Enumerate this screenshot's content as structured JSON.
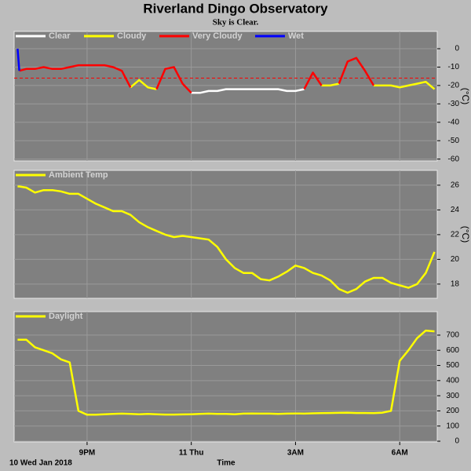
{
  "chart_data": [
    {
      "type": "line",
      "title": "Riverland Dingo Observatory",
      "subtitle": "Sky is Clear.",
      "y_label": "(°C)",
      "x": [
        19.0,
        19.05,
        19.25,
        19.5,
        19.75,
        20.0,
        20.25,
        20.5,
        20.75,
        21.0,
        21.25,
        21.5,
        21.75,
        22.0,
        22.25,
        22.5,
        22.75,
        23.0,
        23.25,
        23.5,
        23.75,
        24.0,
        24.25,
        24.5,
        24.75,
        25.0,
        25.25,
        25.5,
        25.75,
        26.0,
        26.25,
        26.5,
        26.75,
        27.0,
        27.25,
        27.5,
        27.75,
        28.0,
        28.25,
        28.5,
        28.75,
        29.0,
        29.25,
        29.5,
        29.75,
        30.0,
        30.25,
        30.5,
        30.75,
        31.0
      ],
      "series": [
        {
          "name": "Clear",
          "color": "#ffffff",
          "values": [
            null,
            null,
            null,
            null,
            null,
            null,
            null,
            null,
            null,
            null,
            null,
            null,
            null,
            null,
            null,
            null,
            null,
            null,
            null,
            null,
            null,
            -24,
            -24,
            -23,
            -23,
            -22,
            -22,
            -22,
            -22,
            -22,
            -22,
            -22,
            -23,
            -23,
            -22,
            null,
            null,
            null,
            null,
            null,
            null,
            null,
            null,
            null,
            null,
            null,
            null,
            null,
            null,
            null
          ]
        },
        {
          "name": "Cloudy",
          "color": "#ffff00",
          "values": [
            null,
            null,
            null,
            null,
            null,
            null,
            null,
            null,
            null,
            null,
            null,
            null,
            null,
            null,
            -21,
            -17,
            -21,
            -22,
            null,
            null,
            null,
            null,
            null,
            null,
            null,
            null,
            null,
            null,
            null,
            null,
            null,
            null,
            null,
            null,
            null,
            null,
            -20,
            -20,
            -19,
            null,
            null,
            null,
            -20,
            -20,
            -20,
            -21,
            -20,
            -19,
            -18,
            -22
          ]
        },
        {
          "name": "Very Cloudy",
          "color": "#ff0000",
          "values": [
            null,
            -12,
            -11,
            -11,
            -10,
            -11,
            -11,
            -10,
            -9,
            -9,
            -9,
            -9,
            -10,
            -12,
            -21,
            null,
            null,
            -22,
            -11,
            -10,
            -19,
            -24,
            null,
            null,
            null,
            null,
            null,
            null,
            null,
            null,
            null,
            null,
            null,
            null,
            -22,
            -13,
            -20,
            null,
            -19,
            -7,
            -5,
            -12,
            -20,
            null,
            null,
            null,
            null,
            null,
            null,
            null
          ]
        },
        {
          "name": "Wet",
          "color": "#0000ff",
          "values": [
            0,
            -12,
            null,
            null,
            null,
            null,
            null,
            null,
            null,
            null,
            null,
            null,
            null,
            null,
            null,
            null,
            null,
            null,
            null,
            null,
            null,
            null,
            null,
            null,
            null,
            null,
            null,
            null,
            null,
            null,
            null,
            null,
            null,
            null,
            null,
            null,
            null,
            null,
            null,
            null,
            null,
            null,
            null,
            null,
            null,
            null,
            null,
            null,
            null,
            null
          ]
        }
      ],
      "threshold": -16,
      "xlim": [
        18.9,
        31.08
      ],
      "ylim": [
        -61,
        9.4
      ],
      "yticks": [
        0,
        -10,
        -20,
        -30,
        -40,
        -50,
        -60
      ],
      "grid": true
    },
    {
      "type": "line",
      "y_label": "(°C)",
      "x": [
        19.0,
        19.05,
        19.25,
        19.5,
        19.75,
        20.0,
        20.25,
        20.5,
        20.75,
        21.0,
        21.25,
        21.5,
        21.75,
        22.0,
        22.25,
        22.5,
        22.75,
        23.0,
        23.25,
        23.5,
        23.75,
        24.0,
        24.25,
        24.5,
        24.75,
        25.0,
        25.25,
        25.5,
        25.75,
        26.0,
        26.25,
        26.5,
        26.75,
        27.0,
        27.25,
        27.5,
        27.75,
        28.0,
        28.25,
        28.5,
        28.75,
        29.0,
        29.25,
        29.5,
        29.75,
        30.0,
        30.25,
        30.5,
        30.75,
        31.0
      ],
      "series": [
        {
          "name": "Ambient Temp",
          "color": "#ffff00",
          "values": [
            25.9,
            25.9,
            25.8,
            25.4,
            25.6,
            25.6,
            25.5,
            25.3,
            25.3,
            24.9,
            24.5,
            24.2,
            23.9,
            23.9,
            23.6,
            23.0,
            22.6,
            22.3,
            22.0,
            21.8,
            21.9,
            21.8,
            21.7,
            21.6,
            21.0,
            20.0,
            19.3,
            18.9,
            18.9,
            18.4,
            18.3,
            18.6,
            19.0,
            19.5,
            19.3,
            18.9,
            18.7,
            18.3,
            17.6,
            17.3,
            17.6,
            18.2,
            18.5,
            18.5,
            18.1,
            17.9,
            17.7,
            18.0,
            18.9,
            20.6
          ]
        }
      ],
      "xlim": [
        18.9,
        31.08
      ],
      "ylim": [
        16.85,
        27.2
      ],
      "yticks": [
        26,
        24,
        22,
        20,
        18
      ],
      "grid": true
    },
    {
      "type": "line",
      "x_label": "Time",
      "date_label": "10 Wed Jan 2018",
      "x": [
        19.0,
        19.05,
        19.25,
        19.5,
        19.75,
        20.0,
        20.25,
        20.5,
        20.75,
        21.0,
        21.25,
        21.5,
        21.75,
        22.0,
        22.25,
        22.5,
        22.75,
        23.0,
        23.25,
        23.5,
        23.75,
        24.0,
        24.25,
        24.5,
        24.75,
        25.0,
        25.25,
        25.5,
        25.75,
        26.0,
        26.25,
        26.5,
        26.75,
        27.0,
        27.25,
        27.5,
        27.75,
        28.0,
        28.25,
        28.5,
        28.75,
        29.0,
        29.25,
        29.5,
        29.75,
        30.0,
        30.25,
        30.5,
        30.75,
        31.0
      ],
      "series": [
        {
          "name": "Daylight",
          "color": "#ffff00",
          "values": [
            670,
            670,
            670,
            620,
            600,
            580,
            540,
            520,
            200,
            175,
            175,
            178,
            180,
            182,
            180,
            178,
            180,
            178,
            176,
            176,
            177,
            178,
            180,
            182,
            180,
            180,
            178,
            182,
            183,
            182,
            182,
            180,
            182,
            183,
            182,
            184,
            185,
            186,
            187,
            188,
            186,
            186,
            185,
            188,
            200,
            530,
            600,
            680,
            730,
            725
          ]
        }
      ],
      "xlim": [
        18.9,
        31.08
      ],
      "ylim": [
        -5,
        855
      ],
      "yticks": [
        0,
        100,
        200,
        300,
        400,
        500,
        600,
        700
      ],
      "xticks": [
        {
          "value": 21,
          "label": "9PM"
        },
        {
          "value": 24,
          "label": "11 Thu"
        },
        {
          "value": 27,
          "label": "3AM"
        },
        {
          "value": 30,
          "label": "6AM"
        }
      ],
      "grid": true
    }
  ]
}
